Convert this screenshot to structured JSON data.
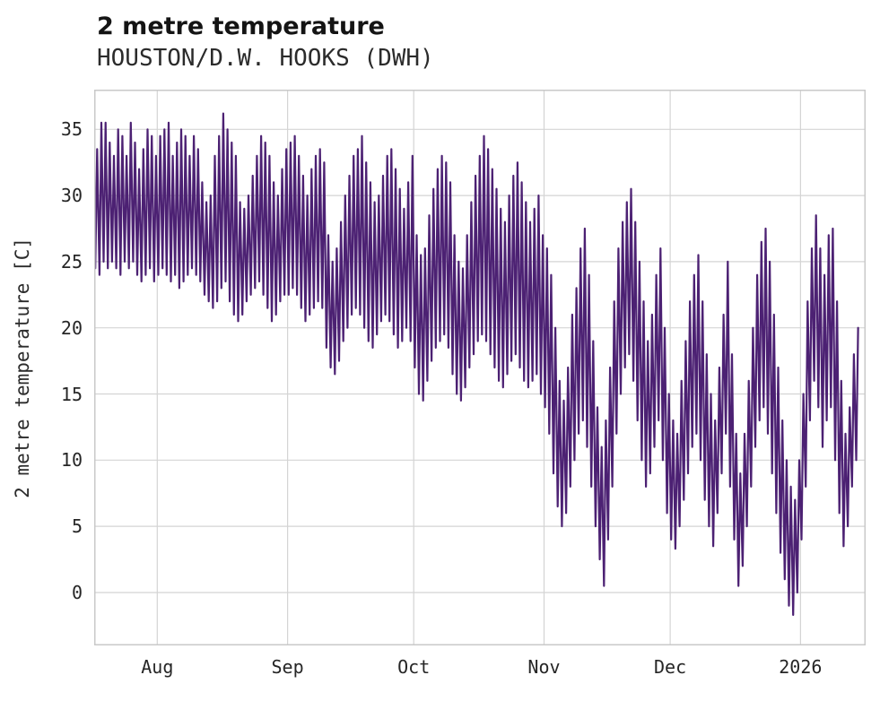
{
  "header": {
    "title": "2 metre temperature",
    "subtitle": "HOUSTON/D.W. HOOKS (DWH)"
  },
  "chart_data": {
    "type": "line",
    "title": "2 metre temperature",
    "subtitle": "HOUSTON/D.W. HOOKS (DWH)",
    "xlabel": "",
    "ylabel": "2 metre temperature [C]",
    "ylim": [
      -4,
      38
    ],
    "y_ticks": [
      0,
      5,
      10,
      15,
      20,
      25,
      30,
      35
    ],
    "x_tick_labels": [
      "Aug",
      "Sep",
      "Oct",
      "Nov",
      "Dec",
      "2026"
    ],
    "x_tick_days": [
      15,
      46,
      76,
      107,
      137,
      168
    ],
    "x_range_days": 183.5,
    "grid": true,
    "legend": "none",
    "line_color": "#4c2173",
    "series_name": "2 metre temperature [C]",
    "sampling": "daily_min_max",
    "daily_min_max": [
      [
        24.5,
        33.5
      ],
      [
        24,
        35.5
      ],
      [
        25,
        35.5
      ],
      [
        24.5,
        34
      ],
      [
        25,
        33
      ],
      [
        24.5,
        35
      ],
      [
        24,
        34.5
      ],
      [
        25,
        33
      ],
      [
        24.5,
        35.5
      ],
      [
        25,
        34
      ],
      [
        24,
        32
      ],
      [
        23.5,
        33.5
      ],
      [
        24,
        35
      ],
      [
        24.5,
        34.5
      ],
      [
        23.5,
        33
      ],
      [
        24,
        34.5
      ],
      [
        24.5,
        35
      ],
      [
        24,
        35.5
      ],
      [
        23.5,
        33
      ],
      [
        24,
        34
      ],
      [
        23,
        35
      ],
      [
        23.5,
        34.5
      ],
      [
        24,
        33
      ],
      [
        24.5,
        34.5
      ],
      [
        24,
        33.5
      ],
      [
        23.5,
        31
      ],
      [
        22.5,
        29.5
      ],
      [
        22,
        30
      ],
      [
        21.5,
        33
      ],
      [
        22,
        34.5
      ],
      [
        23,
        36.2
      ],
      [
        23.5,
        35
      ],
      [
        22,
        34
      ],
      [
        21,
        33
      ],
      [
        20.5,
        29.5
      ],
      [
        21,
        29
      ],
      [
        22,
        30
      ],
      [
        22.5,
        31.5
      ],
      [
        23,
        33
      ],
      [
        23.5,
        34.5
      ],
      [
        22.5,
        34
      ],
      [
        21.5,
        33
      ],
      [
        20.5,
        31
      ],
      [
        21,
        30
      ],
      [
        22,
        32
      ],
      [
        22.5,
        33.5
      ],
      [
        22.5,
        34
      ],
      [
        23,
        34.5
      ],
      [
        22.5,
        33
      ],
      [
        21.5,
        31.5
      ],
      [
        20.5,
        30
      ],
      [
        21,
        32
      ],
      [
        21.5,
        33
      ],
      [
        22,
        33.5
      ],
      [
        21.5,
        32.5
      ],
      [
        18.5,
        27
      ],
      [
        17,
        25
      ],
      [
        16.5,
        26
      ],
      [
        17.5,
        28
      ],
      [
        19,
        30
      ],
      [
        20,
        31.5
      ],
      [
        21,
        33
      ],
      [
        21.5,
        33.5
      ],
      [
        21,
        34.5
      ],
      [
        20,
        32.5
      ],
      [
        19,
        31
      ],
      [
        18.5,
        29.5
      ],
      [
        19.5,
        30
      ],
      [
        20.5,
        31.5
      ],
      [
        21,
        33
      ],
      [
        20.5,
        33.5
      ],
      [
        19.5,
        32
      ],
      [
        18.5,
        30.5
      ],
      [
        19,
        29
      ],
      [
        20,
        31
      ],
      [
        19,
        33
      ],
      [
        17,
        27
      ],
      [
        15,
        25.5
      ],
      [
        14.5,
        26
      ],
      [
        16,
        28.5
      ],
      [
        17.5,
        30.5
      ],
      [
        18.5,
        32
      ],
      [
        19,
        33
      ],
      [
        19.5,
        32.5
      ],
      [
        18.5,
        31
      ],
      [
        16.5,
        27
      ],
      [
        15,
        25
      ],
      [
        14.5,
        24.5
      ],
      [
        15.5,
        27
      ],
      [
        17,
        29.5
      ],
      [
        18,
        31.5
      ],
      [
        19,
        33
      ],
      [
        19.5,
        34.5
      ],
      [
        19,
        33.5
      ],
      [
        18,
        32
      ],
      [
        17,
        30.5
      ],
      [
        16,
        29
      ],
      [
        15.5,
        28
      ],
      [
        16.5,
        30
      ],
      [
        17.5,
        31.5
      ],
      [
        18,
        32.5
      ],
      [
        17,
        31
      ],
      [
        16,
        29.5
      ],
      [
        15.5,
        28
      ],
      [
        16,
        29
      ],
      [
        16.5,
        30
      ],
      [
        15,
        27
      ],
      [
        14,
        26
      ],
      [
        12,
        24
      ],
      [
        9,
        20
      ],
      [
        6.5,
        16
      ],
      [
        5,
        14.5
      ],
      [
        6,
        17
      ],
      [
        8,
        21
      ],
      [
        10,
        23
      ],
      [
        12,
        26
      ],
      [
        13,
        27.5
      ],
      [
        11,
        24
      ],
      [
        8,
        19
      ],
      [
        5,
        14
      ],
      [
        2.5,
        11
      ],
      [
        0.5,
        13
      ],
      [
        4,
        17
      ],
      [
        8,
        22
      ],
      [
        12,
        26
      ],
      [
        15,
        28
      ],
      [
        17,
        29.5
      ],
      [
        18,
        30.5
      ],
      [
        16,
        28
      ],
      [
        13,
        25
      ],
      [
        10,
        22
      ],
      [
        8,
        19
      ],
      [
        9,
        21
      ],
      [
        11,
        24
      ],
      [
        13,
        26
      ],
      [
        10,
        20
      ],
      [
        6,
        15
      ],
      [
        4,
        13
      ],
      [
        3.3,
        12
      ],
      [
        5,
        16
      ],
      [
        7,
        19
      ],
      [
        9,
        22
      ],
      [
        11,
        24
      ],
      [
        12,
        25.5
      ],
      [
        10,
        22
      ],
      [
        7,
        18
      ],
      [
        5,
        15
      ],
      [
        3.5,
        13
      ],
      [
        6,
        17
      ],
      [
        9,
        21
      ],
      [
        12,
        25
      ],
      [
        8,
        18
      ],
      [
        4,
        12
      ],
      [
        0.5,
        9
      ],
      [
        2,
        12
      ],
      [
        5,
        16
      ],
      [
        8,
        20
      ],
      [
        11,
        24
      ],
      [
        13,
        26.5
      ],
      [
        14,
        27.5
      ],
      [
        12,
        25
      ],
      [
        9,
        21
      ],
      [
        6,
        17
      ],
      [
        3,
        13
      ],
      [
        1,
        10
      ],
      [
        -1,
        8
      ],
      [
        -1.7,
        7
      ],
      [
        0,
        10
      ],
      [
        4,
        15
      ],
      [
        8,
        22
      ],
      [
        13,
        26
      ],
      [
        16,
        28.5
      ],
      [
        14,
        26
      ],
      [
        11,
        24
      ],
      [
        13,
        27
      ],
      [
        14,
        27.5
      ],
      [
        10,
        22
      ],
      [
        6,
        16
      ],
      [
        3.5,
        12
      ],
      [
        5,
        14
      ],
      [
        8,
        18
      ],
      [
        10,
        20
      ]
    ]
  }
}
